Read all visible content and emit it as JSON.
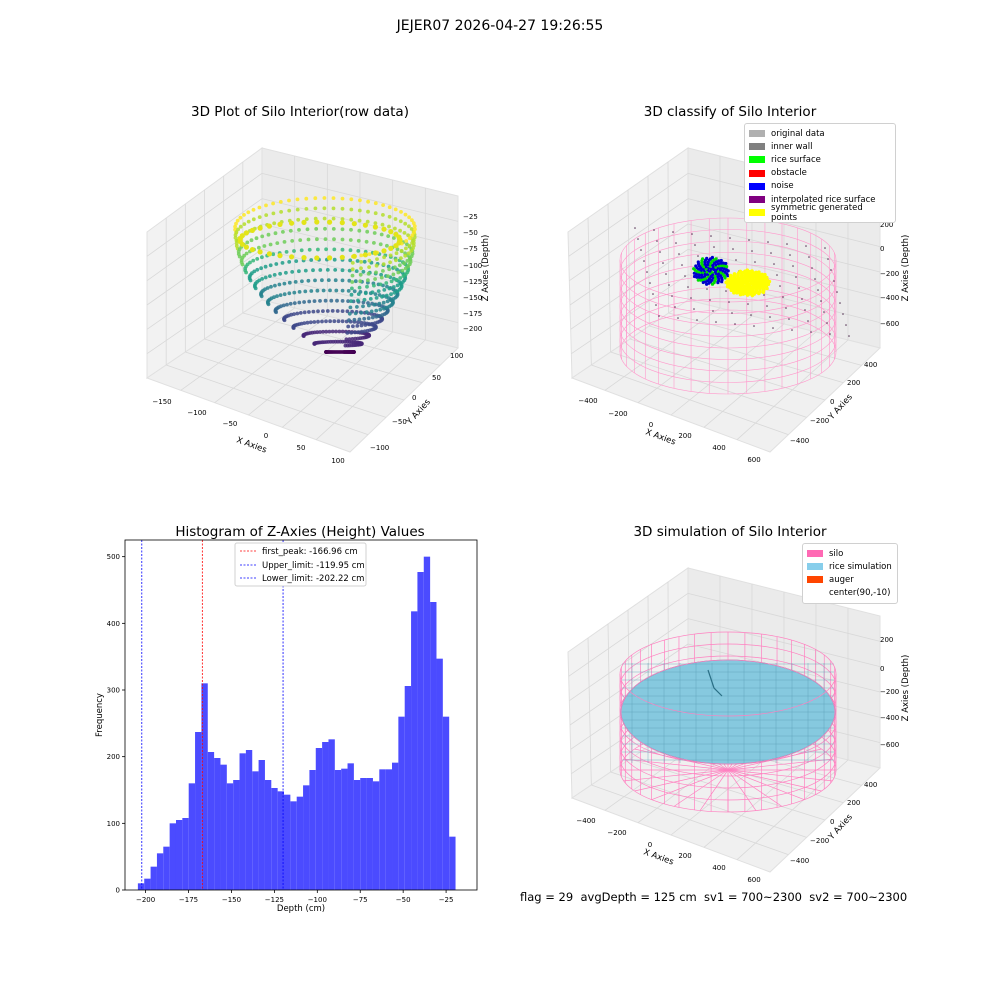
{
  "suptitle": "JEJER07 2026-04-27 19:26:55",
  "panels": {
    "raw": {
      "title": "3D Plot of Silo Interior(row data)",
      "xlabel": "X Axies",
      "ylabel": "Y Axies",
      "zlabel": "Z Axies (Depth)",
      "xticks": [
        "−150",
        "−100",
        "−50",
        "0",
        "50",
        "100"
      ],
      "yticks": [
        "−100",
        "−50",
        "0",
        "50",
        "100"
      ],
      "zticks": [
        "−25",
        "−50",
        "−75",
        "−100",
        "−125",
        "−150",
        "−175",
        "−200"
      ]
    },
    "classify": {
      "title": "3D classify of Silo Interior",
      "xlabel": "X Axies",
      "ylabel": "Y Axies",
      "zlabel": "Z Axies (Depth)",
      "xticks": [
        "−400",
        "−200",
        "0",
        "200",
        "400",
        "600"
      ],
      "yticks": [
        "−400",
        "−200",
        "0",
        "200",
        "400"
      ],
      "zticks": [
        "200",
        "0",
        "−200",
        "−400",
        "−600"
      ],
      "legend": [
        {
          "label": "original data",
          "color": "#b0b0b0"
        },
        {
          "label": "inner wall",
          "color": "#808080"
        },
        {
          "label": "rice surface",
          "color": "#00ff00"
        },
        {
          "label": "obstacle",
          "color": "#ff0000"
        },
        {
          "label": "noise",
          "color": "#0000ff"
        },
        {
          "label": "interpolated rice surface",
          "color": "#800080"
        },
        {
          "label": "symmetric generated points",
          "color": "#ffff00"
        }
      ]
    },
    "simulation": {
      "title": "3D simulation of Silo Interior",
      "xlabel": "X Axies",
      "ylabel": "Y Axies",
      "zlabel": "Z Axies (Depth)",
      "xticks": [
        "−400",
        "−200",
        "0",
        "200",
        "400",
        "600"
      ],
      "yticks": [
        "−400",
        "−200",
        "0",
        "200",
        "400"
      ],
      "zticks": [
        "200",
        "0",
        "−200",
        "−400",
        "−600"
      ],
      "legend": [
        {
          "label": "silo",
          "color": "#ff69b4"
        },
        {
          "label": "rice simulation",
          "color": "#87ceeb"
        },
        {
          "label": "auger",
          "color": "#ff4500"
        },
        {
          "label": "center(90,-10)",
          "color": "#ffffff"
        }
      ]
    }
  },
  "chart_data": {
    "type": "bar",
    "title": "Histogram of Z-Axies (Height) Values",
    "xlabel": "Depth (cm)",
    "ylabel": "Frequency",
    "xlim": [
      -212,
      -7
    ],
    "ylim": [
      0,
      525
    ],
    "xticks": [
      -200,
      -175,
      -150,
      -125,
      -100,
      -75,
      -50,
      -25
    ],
    "yticks": [
      0,
      100,
      200,
      300,
      400,
      500
    ],
    "bin_start": -204.5,
    "bin_width": 3.7,
    "values": [
      10,
      17,
      35,
      55,
      65,
      100,
      105,
      108,
      160,
      237,
      310,
      207,
      198,
      188,
      160,
      165,
      205,
      210,
      178,
      195,
      165,
      153,
      148,
      143,
      133,
      140,
      157,
      180,
      213,
      222,
      226,
      180,
      182,
      190,
      165,
      168,
      168,
      163,
      181,
      181,
      191,
      260,
      306,
      418,
      477,
      500,
      432,
      347,
      260,
      80
    ],
    "bar_color": "#4b4bff",
    "vlines": [
      {
        "x": -166.96,
        "label": "first_peak: -166.96 cm",
        "color": "#ff0000"
      },
      {
        "x": -119.95,
        "label": "Upper_limit: -119.95 cm",
        "color": "#0000ff"
      },
      {
        "x": -202.22,
        "label": "Lower_limit: -202.22 cm",
        "color": "#0000ff"
      }
    ],
    "legend_position": "upper center"
  },
  "status_text": "flag = 29  avgDepth = 125 cm  sv1 = 700~2300  sv2 = 700~2300"
}
